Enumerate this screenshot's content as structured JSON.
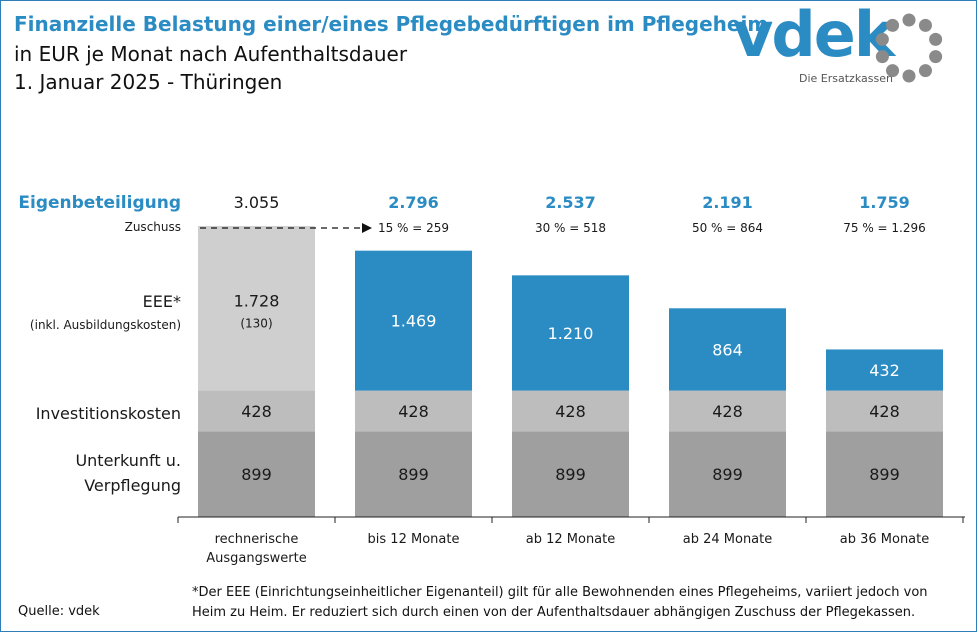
{
  "header": {
    "title": "Finanzielle Belastung einer/eines Pflegebedürftigen im Pflegeheim",
    "subtitle": "in EUR je Monat nach Aufenthaltsdauer",
    "subtitle2": "1. Januar 2025 - Thüringen"
  },
  "logo": {
    "name": "vdek",
    "tagline": "Die Ersatzkassen"
  },
  "colors": {
    "brand": "#2b8cc4",
    "eee": "#2b8cc4",
    "eee_base": "#cfcfcf",
    "invest": "#bdbdbd",
    "unterkunft": "#9f9f9f",
    "axis": "#222222"
  },
  "chart_data": {
    "type": "bar",
    "stacked": true,
    "categories": [
      "rechnerische Ausgangswerte",
      "bis 12 Monate",
      "ab 12 Monate",
      "ab 24 Monate",
      "ab 36 Monate"
    ],
    "series": [
      {
        "name": "Unterkunft u. Verpflegung",
        "values": [
          899,
          899,
          899,
          899,
          899
        ],
        "labels": [
          "899",
          "899",
          "899",
          "899",
          "899"
        ]
      },
      {
        "name": "Investitionskosten",
        "values": [
          428,
          428,
          428,
          428,
          428
        ],
        "labels": [
          "428",
          "428",
          "428",
          "428",
          "428"
        ]
      },
      {
        "name": "EEE*",
        "name_note": "(inkl. Ausbildungskosten)",
        "values": [
          1728,
          1469,
          1210,
          864,
          432
        ],
        "labels": [
          "1.728",
          "1.469",
          "1.210",
          "864",
          "432"
        ],
        "sub_labels": [
          "(130)",
          "",
          "",
          "",
          ""
        ]
      }
    ],
    "row_labels": {
      "eigenbeteiligung": "Eigenbeteiligung",
      "zuschuss": "Zuschuss",
      "eee": "EEE*",
      "eee_note": "(inkl. Ausbildungskosten)",
      "invest": "Investitionskosten",
      "unterkunft_line1": "Unterkunft u.",
      "unterkunft_line2": "Verpflegung"
    },
    "eigenbeteiligung": [
      "3.055",
      "2.796",
      "2.537",
      "2.191",
      "1.759"
    ],
    "zuschuss": [
      "",
      "15 % = 259",
      "30 % = 518",
      "50 % = 864",
      "75 % = 1.296"
    ],
    "ylim": [
      0,
      3055
    ],
    "grid": false,
    "legend": "none"
  },
  "footnote": {
    "line1": "*Der EEE (Einrichtungseinheitlicher  Eigenanteil) gilt für alle Bewohnenden  eines  Pflegeheims,  variiert jedoch von",
    "line2": "Heim zu Heim. Er reduziert sich durch einen von der Aufenthaltsdauer  abhängigen Zuschuss  der Pflegekassen."
  },
  "source": "Quelle: vdek"
}
